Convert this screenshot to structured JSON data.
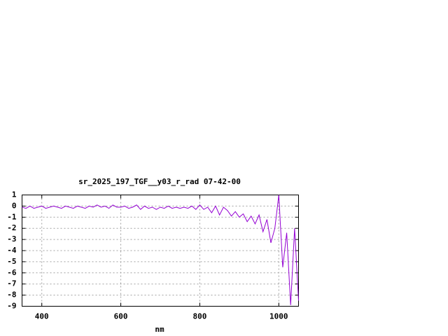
{
  "chart_data": {
    "type": "line",
    "title": "sr_2025_197_TGF__y03_r_rad 07-42-00",
    "x_label": "nm",
    "x": [
      350,
      360,
      370,
      380,
      390,
      400,
      410,
      420,
      430,
      440,
      450,
      460,
      470,
      480,
      490,
      500,
      510,
      520,
      530,
      540,
      550,
      560,
      570,
      580,
      590,
      600,
      610,
      620,
      630,
      640,
      650,
      660,
      670,
      680,
      690,
      700,
      710,
      720,
      730,
      740,
      750,
      760,
      770,
      780,
      790,
      800,
      810,
      820,
      830,
      840,
      850,
      860,
      870,
      880,
      890,
      900,
      910,
      920,
      930,
      940,
      950,
      960,
      970,
      980,
      990,
      1000,
      1010,
      1020,
      1030,
      1040,
      1050
    ],
    "series": [
      {
        "color": "#9400d3",
        "values": [
          -0.1,
          -0.2,
          0.0,
          -0.2,
          -0.1,
          0.0,
          -0.2,
          -0.1,
          0.0,
          -0.1,
          -0.2,
          0.0,
          -0.1,
          -0.2,
          0.0,
          -0.1,
          -0.2,
          0.0,
          -0.1,
          0.1,
          -0.1,
          0.0,
          -0.2,
          0.1,
          -0.1,
          -0.1,
          0.0,
          -0.2,
          -0.1,
          0.1,
          -0.3,
          0.0,
          -0.2,
          -0.1,
          -0.3,
          -0.1,
          -0.2,
          0.0,
          -0.2,
          -0.1,
          -0.2,
          -0.1,
          -0.2,
          0.0,
          -0.3,
          0.1,
          -0.3,
          -0.1,
          -0.6,
          0.0,
          -0.8,
          -0.1,
          -0.4,
          -0.9,
          -0.5,
          -1.0,
          -0.7,
          -1.4,
          -0.9,
          -1.6,
          -0.8,
          -2.3,
          -1.2,
          -3.3,
          -2.0,
          1.0,
          -5.5,
          -2.4,
          -8.9,
          -2.0,
          -8.5
        ]
      }
    ],
    "xlim": [
      350,
      1050
    ],
    "ylim": [
      -9,
      1
    ],
    "xticks": [
      400,
      600,
      800,
      1000
    ],
    "yticks": [
      1,
      0,
      -1,
      -2,
      -3,
      -4,
      -5,
      -6,
      -7,
      -8,
      -9
    ],
    "grid": true
  }
}
